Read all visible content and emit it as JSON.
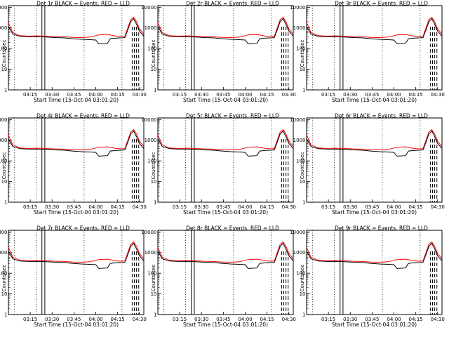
{
  "chart_data": [
    {
      "type": "line",
      "title": "Det 1r BLACK = Events, RED = LLD"
    },
    {
      "type": "line",
      "title": "Det 2r BLACK = Events, RED = LLD"
    },
    {
      "type": "line",
      "title": "Det 3r BLACK = Events, RED = LLD"
    },
    {
      "type": "line",
      "title": "Det 4r BLACK = Events, RED = LLD"
    },
    {
      "type": "line",
      "title": "Det 5r BLACK = Events, RED = LLD"
    },
    {
      "type": "line",
      "title": "Det 6r BLACK = Events, RED = LLD"
    },
    {
      "type": "line",
      "title": "Det 7r BLACK = Events, RED = LLD"
    },
    {
      "type": "line",
      "title": "Det 8r BLACK = Events, RED = LLD"
    },
    {
      "type": "line",
      "title": "Det 9r BLACK = Events, RED = LLD"
    }
  ],
  "shared": {
    "xlabel": "Start Time (15-Oct-04 03:01:20)",
    "ylabel": "Counts/sec",
    "x_ticks": [
      "03:15",
      "03:30",
      "03:45",
      "04:00",
      "04:15",
      "04:30"
    ],
    "y_ticks": [
      "1",
      "10",
      "100",
      "1000",
      "10000"
    ],
    "x_range_min": [
      0,
      93
    ],
    "y_scale": "log",
    "y_range": [
      1,
      12000
    ],
    "series": [
      {
        "name": "Events",
        "color": "#000000"
      },
      {
        "name": "LLD",
        "color": "#ff0000"
      }
    ],
    "minute_points": [
      0,
      3,
      8,
      14,
      20,
      26,
      32,
      38,
      44,
      50,
      56,
      60,
      62,
      68,
      70,
      74,
      78,
      80,
      82,
      84,
      86,
      88,
      90,
      93
    ],
    "events_counts": [
      1200,
      500,
      390,
      370,
      375,
      360,
      340,
      330,
      300,
      280,
      270,
      260,
      170,
      180,
      300,
      320,
      330,
      340,
      800,
      2000,
      2800,
      1500,
      700,
      400
    ],
    "lld_counts": [
      1800,
      600,
      420,
      400,
      410,
      400,
      380,
      370,
      350,
      340,
      360,
      420,
      460,
      480,
      450,
      400,
      380,
      400,
      1000,
      2500,
      3300,
      2000,
      900,
      500
    ],
    "dotted_marker_min": [
      4,
      19,
      52,
      78
    ],
    "solid_marker_min": [
      23,
      25
    ],
    "dashed_marker_min": [
      85,
      86.5,
      88,
      89.5
    ]
  }
}
